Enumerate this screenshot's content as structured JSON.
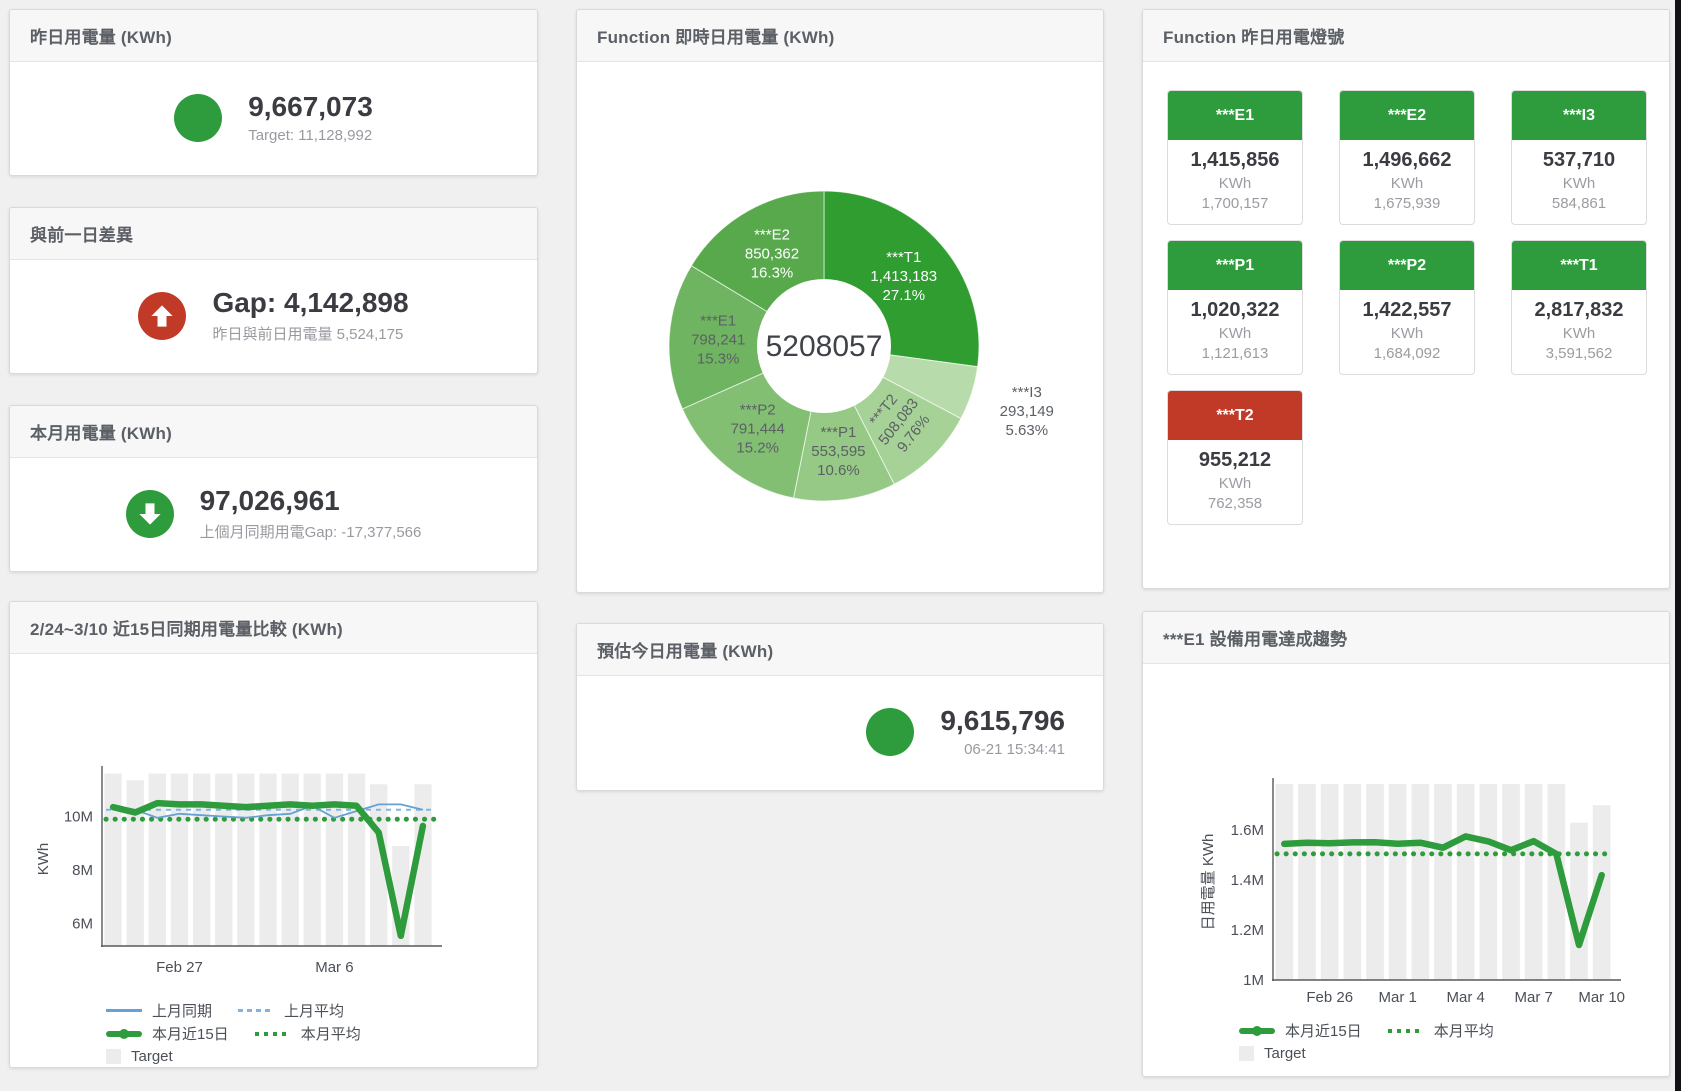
{
  "ui": {
    "colors": {
      "green": "#2e9c3c",
      "red": "#c13a28",
      "bar": "#ececec",
      "blue": "#65a1d4",
      "blue_light": "#82b4de",
      "axis_text": "#4b4f57"
    }
  },
  "cards": {
    "yesterday": {
      "title": "昨日用電量 (KWh)",
      "value": "9,667,073",
      "subtext": "Target: 11,128,992"
    },
    "gap": {
      "title": "與前一日差異",
      "value": "Gap: 4,142,898",
      "subtext": "昨日與前日用電量 5,524,175"
    },
    "month": {
      "title": "本月用電量 (KWh)",
      "value": "97,026,961",
      "subtext": "上個月同期用電Gap: -17,377,566"
    },
    "estimate": {
      "title": "預估今日用電量 (KWh)",
      "value": "9,615,796",
      "subtext": "06-21 15:34:41"
    }
  },
  "lights": {
    "title": "Function 昨日用電燈號",
    "unit": "KWh",
    "tiles": [
      {
        "name": "***E1",
        "value": "1,415,856",
        "target": "1,700,157",
        "status": "green"
      },
      {
        "name": "***E2",
        "value": "1,496,662",
        "target": "1,675,939",
        "status": "green"
      },
      {
        "name": "***I3",
        "value": "537,710",
        "target": "584,861",
        "status": "green"
      },
      {
        "name": "***P1",
        "value": "1,020,322",
        "target": "1,121,613",
        "status": "green"
      },
      {
        "name": "***P2",
        "value": "1,422,557",
        "target": "1,684,092",
        "status": "green"
      },
      {
        "name": "***T1",
        "value": "2,817,832",
        "target": "3,591,562",
        "status": "green"
      },
      {
        "name": "***T2",
        "value": "955,212",
        "target": "762,358",
        "status": "red"
      }
    ]
  },
  "chart_data": [
    {
      "type": "pie",
      "title": "Function 即時日用電量 (KWh)",
      "center_total": "5208057",
      "slices": [
        {
          "name": "***T1",
          "value": 1413183,
          "pct": "27.1%",
          "color": "#2f9d30",
          "label_color": "#ffffff"
        },
        {
          "name": "***I3",
          "value": 293149,
          "pct": "5.63%",
          "color": "#b7dbaa",
          "label_color": "#5c6066",
          "outside": true
        },
        {
          "name": "***T2",
          "value": 508083,
          "pct": "9.76%",
          "color": "#a6d297",
          "label_color": "#5c6066",
          "rotate": -52
        },
        {
          "name": "***P1",
          "value": 553595,
          "pct": "10.6%",
          "color": "#95c985",
          "label_color": "#5c6066"
        },
        {
          "name": "***P2",
          "value": 791444,
          "pct": "15.2%",
          "color": "#82bf72",
          "label_color": "#5c6066"
        },
        {
          "name": "***E1",
          "value": 798241,
          "pct": "15.3%",
          "color": "#6fb460",
          "label_color": "#5c6066"
        },
        {
          "name": "***E2",
          "value": 850362,
          "pct": "16.3%",
          "color": "#57a94c",
          "label_color": "#ffffff"
        }
      ]
    },
    {
      "type": "line",
      "title": "2/24~3/10 近15日同期用電量比較 (KWh)",
      "ylabel": "KWh",
      "unit": "M KWh",
      "ylim": [
        5.17,
        11.66
      ],
      "yticks": [
        {
          "v": 6,
          "label": "6M"
        },
        {
          "v": 8,
          "label": "8M"
        },
        {
          "v": 10,
          "label": "10M"
        }
      ],
      "xticks": [
        {
          "i": 3,
          "label": "Feb 27"
        },
        {
          "i": 10,
          "label": "Mar 6"
        }
      ],
      "target_bars": {
        "name": "Target",
        "values": [
          11.6,
          11.35,
          11.6,
          11.6,
          11.6,
          11.6,
          11.6,
          11.6,
          11.6,
          11.6,
          11.6,
          11.6,
          11.2,
          8.9,
          11.2
        ]
      },
      "series": [
        {
          "name": "上月同期",
          "style": "line",
          "values": [
            10.4,
            10.25,
            9.95,
            10.1,
            10.05,
            10.0,
            9.95,
            10.05,
            10.1,
            10.4,
            9.95,
            10.2,
            10.45,
            10.45,
            10.25
          ]
        },
        {
          "name": "上月平均",
          "style": "dash",
          "avg": 10.25
        },
        {
          "name": "本月近15日",
          "style": "thick",
          "values": [
            10.35,
            10.15,
            10.5,
            10.45,
            10.45,
            10.4,
            10.35,
            10.4,
            10.45,
            10.4,
            10.45,
            10.4,
            9.4,
            5.55,
            9.65
          ]
        },
        {
          "name": "本月平均",
          "style": "dots",
          "avg": 9.9
        }
      ],
      "legend_rows": [
        [
          {
            "sw": "line",
            "label": "上月同期"
          },
          {
            "sw": "dash",
            "label": "上月平均"
          }
        ],
        [
          {
            "sw": "thick",
            "label": "本月近15日"
          },
          {
            "sw": "dots",
            "label": "本月平均"
          }
        ],
        [
          {
            "sw": "box",
            "label": "Target"
          }
        ]
      ]
    },
    {
      "type": "line",
      "title": "***E1 設備用電達成趨勢",
      "ylabel": "日用電量 KWh",
      "unit": "M KWh",
      "ylim": [
        1.0,
        1.785
      ],
      "yticks": [
        {
          "v": 1.0,
          "label": "1M"
        },
        {
          "v": 1.2,
          "label": "1.2M"
        },
        {
          "v": 1.4,
          "label": "1.4M"
        },
        {
          "v": 1.6,
          "label": "1.6M"
        }
      ],
      "xticks": [
        {
          "i": 2,
          "label": "Feb 26"
        },
        {
          "i": 5,
          "label": "Mar 1"
        },
        {
          "i": 8,
          "label": "Mar 4"
        },
        {
          "i": 11,
          "label": "Mar 7"
        },
        {
          "i": 14,
          "label": "Mar 10"
        }
      ],
      "target_bars": {
        "name": "Target",
        "values": [
          1.785,
          1.785,
          1.785,
          1.785,
          1.785,
          1.785,
          1.785,
          1.785,
          1.785,
          1.785,
          1.785,
          1.785,
          1.785,
          1.63,
          1.7
        ]
      },
      "series": [
        {
          "name": "本月近15日",
          "style": "thick",
          "values": [
            1.545,
            1.55,
            1.548,
            1.551,
            1.552,
            1.546,
            1.55,
            1.53,
            1.575,
            1.555,
            1.52,
            1.556,
            1.505,
            1.14,
            1.42
          ]
        },
        {
          "name": "本月平均",
          "style": "dots",
          "avg": 1.505
        }
      ],
      "legend_rows": [
        [
          {
            "sw": "thick",
            "label": "本月近15日"
          },
          {
            "sw": "dots",
            "label": "本月平均"
          }
        ],
        [
          {
            "sw": "box",
            "label": "Target"
          }
        ]
      ]
    }
  ]
}
